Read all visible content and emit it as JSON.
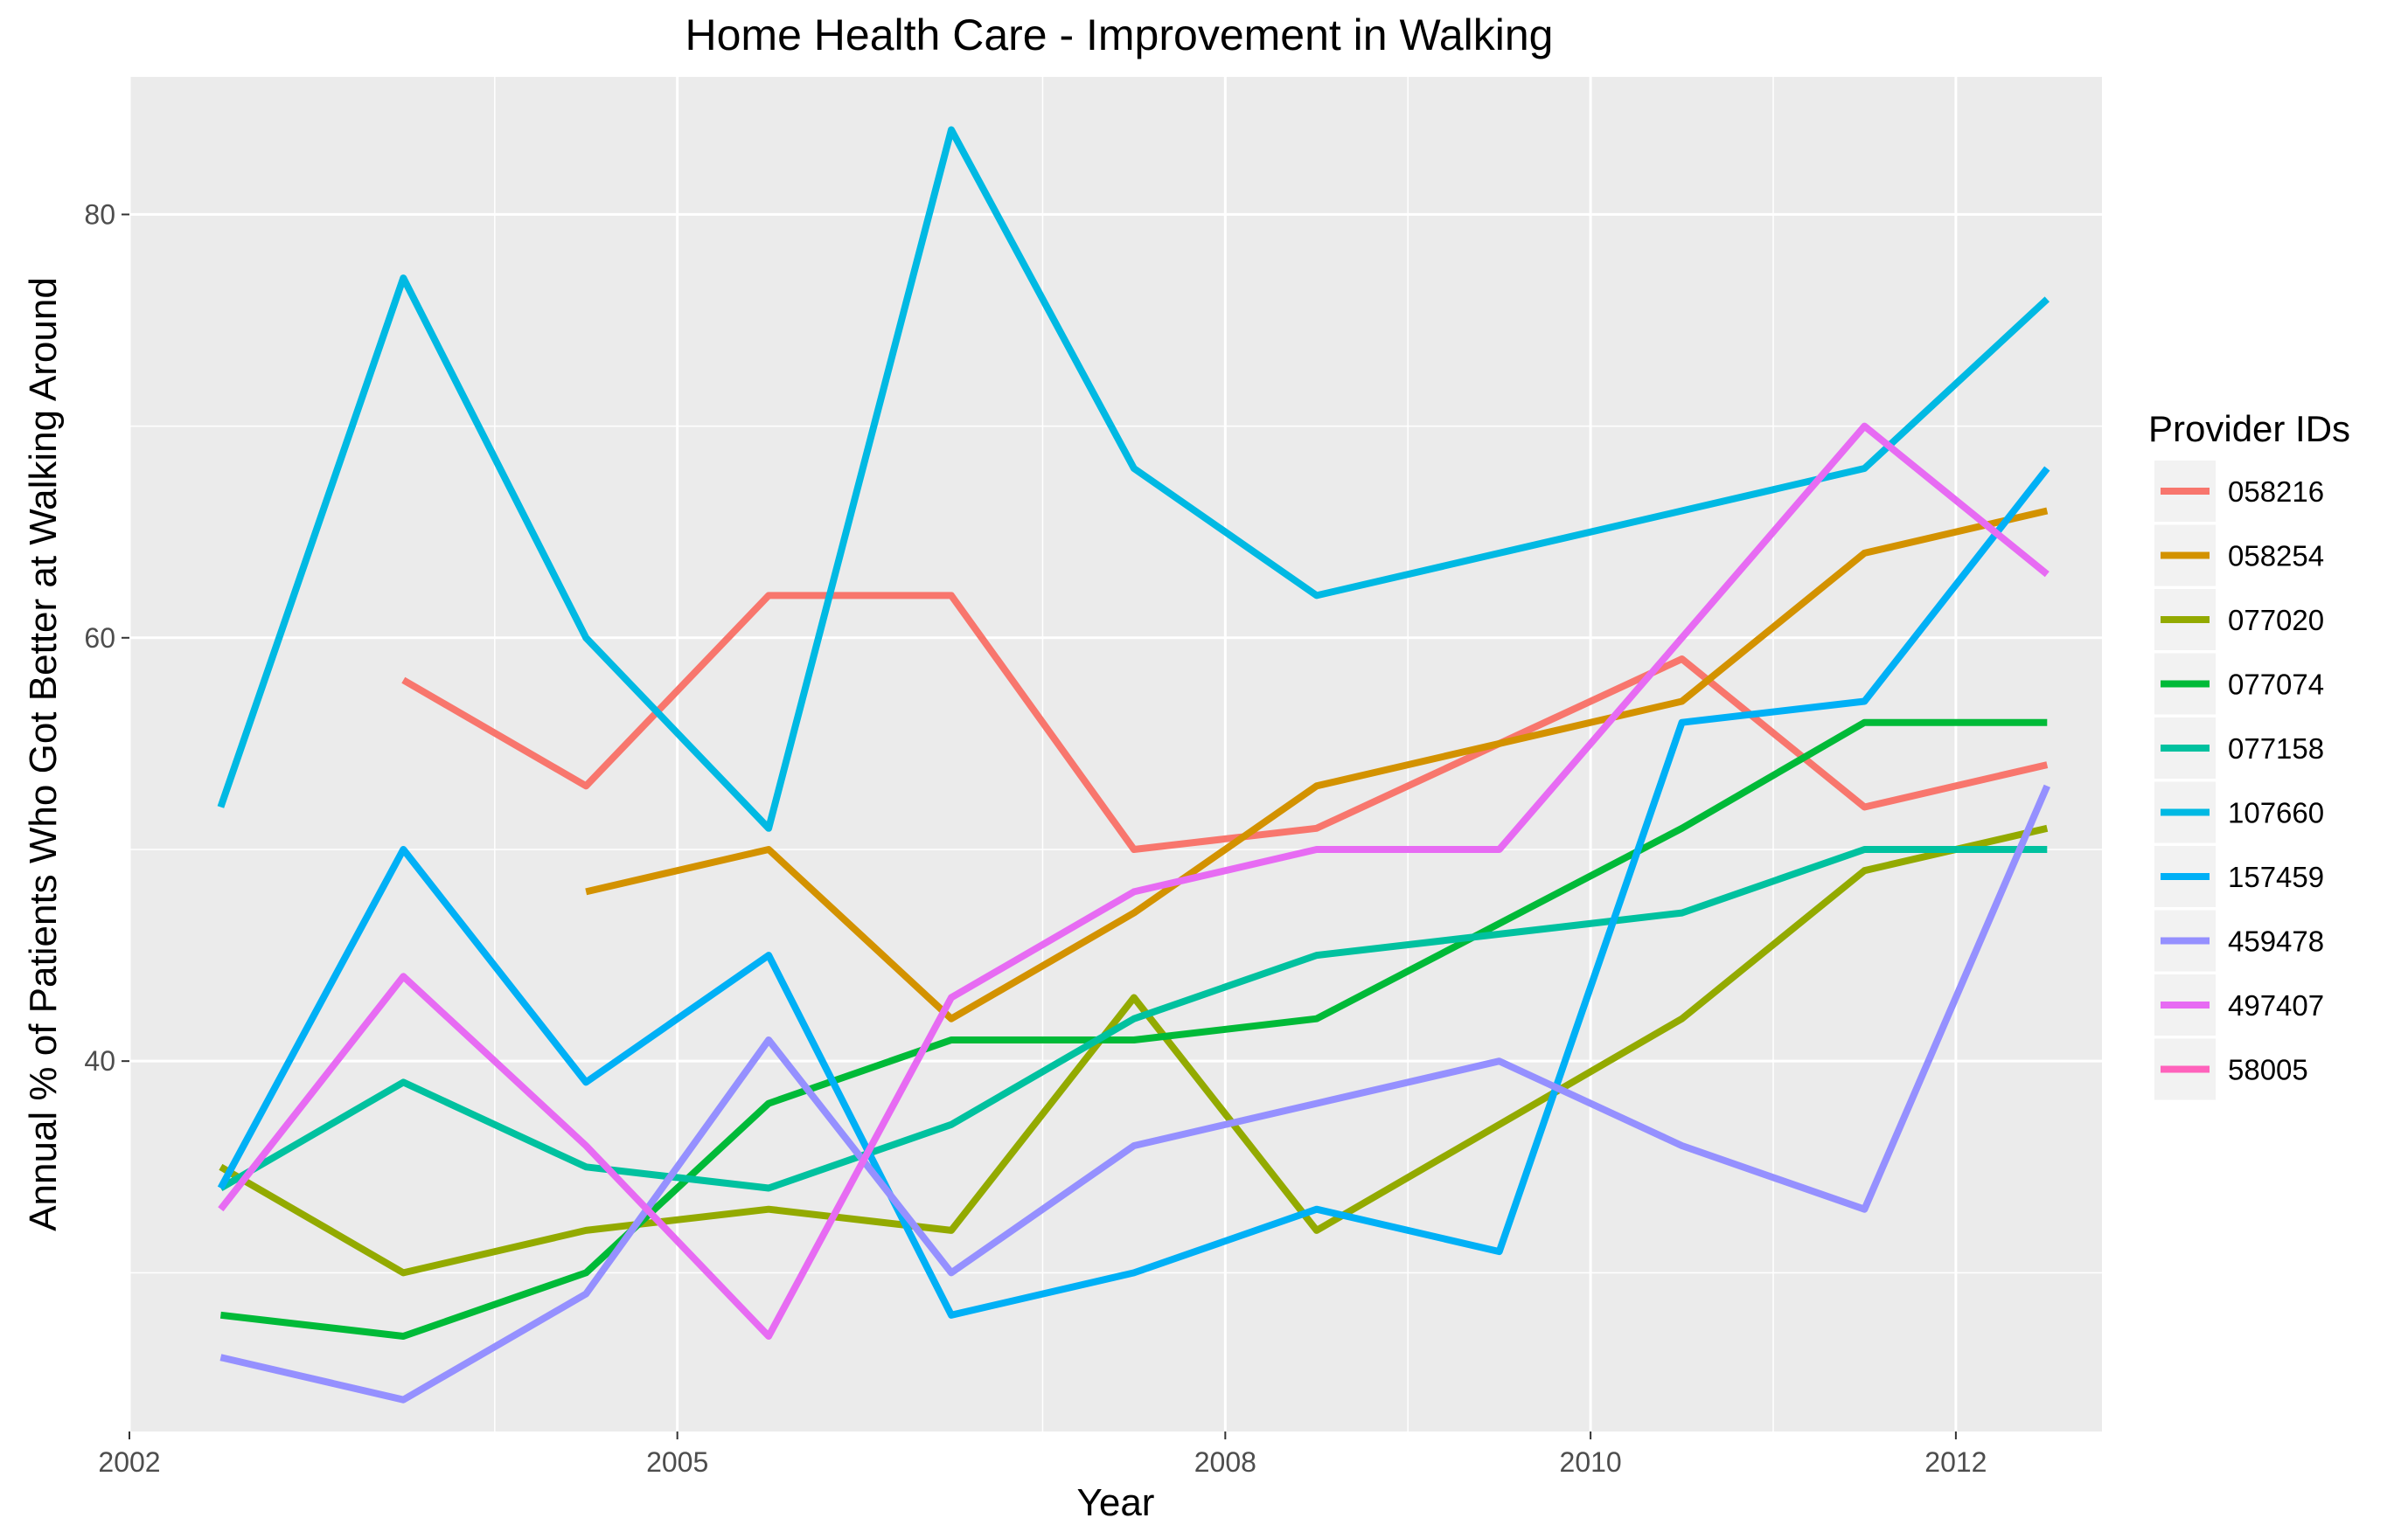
{
  "chart_data": {
    "type": "line",
    "title": "Home Health Care - Improvement in Walking",
    "xlabel": "Year",
    "ylabel": "Annual % of Patients Who Got Better at Walking Around",
    "xlim": [
      2002.0,
      2012.8
    ],
    "ylim": [
      22.5,
      86.5
    ],
    "x_ticks": [
      2002,
      2005,
      2008,
      2010,
      2012
    ],
    "x_minor_ticks": [
      2004,
      2007,
      2009,
      2011
    ],
    "y_ticks": [
      40,
      60,
      80
    ],
    "y_minor_ticks": [
      30,
      50,
      70
    ],
    "grid": true,
    "legend_position": "right",
    "legend_title": "Provider IDs",
    "x": [
      2002.5,
      2003.5,
      2004.5,
      2005.5,
      2006.5,
      2007.5,
      2008.5,
      2009.5,
      2010.5,
      2011.5,
      2012.5
    ],
    "series": [
      {
        "name": "058216",
        "color": "#F8766D",
        "values": [
          null,
          58,
          53,
          62,
          62,
          50,
          51,
          55,
          59,
          52,
          54
        ]
      },
      {
        "name": "058254",
        "color": "#D39200",
        "values": [
          null,
          null,
          48,
          50,
          42,
          47,
          53,
          55,
          57,
          64,
          66
        ]
      },
      {
        "name": "077020",
        "color": "#93AA00",
        "values": [
          35,
          30,
          32,
          33,
          32,
          43,
          32,
          37,
          42,
          49,
          51
        ]
      },
      {
        "name": "077074",
        "color": "#00BA38",
        "values": [
          28,
          27,
          30,
          38,
          41,
          41,
          42,
          46.5,
          51,
          56,
          56
        ]
      },
      {
        "name": "077158",
        "color": "#00C19F",
        "values": [
          34,
          39,
          35,
          34,
          37,
          42,
          45,
          46,
          47,
          50,
          50
        ]
      },
      {
        "name": "107660",
        "color": "#00B9E3",
        "values": [
          52,
          77,
          60,
          51,
          84,
          68,
          62,
          64,
          66,
          68,
          76
        ]
      },
      {
        "name": "157459",
        "color": "#00B0F6",
        "values": [
          34,
          50,
          39,
          45,
          28,
          30,
          33,
          31,
          56,
          57,
          68
        ]
      },
      {
        "name": "459478",
        "color": "#9590FF",
        "values": [
          26,
          24,
          29,
          41,
          30,
          36,
          38,
          40,
          36,
          33,
          53
        ]
      },
      {
        "name": "497407",
        "color": "#E76BF3",
        "values": [
          33,
          44,
          36,
          27,
          43,
          48,
          50,
          50,
          60,
          70,
          63
        ]
      },
      {
        "name": "58005",
        "color": "#FF62BC",
        "values": [
          null,
          null,
          null,
          null,
          null,
          null,
          null,
          null,
          null,
          null,
          null
        ]
      }
    ]
  }
}
